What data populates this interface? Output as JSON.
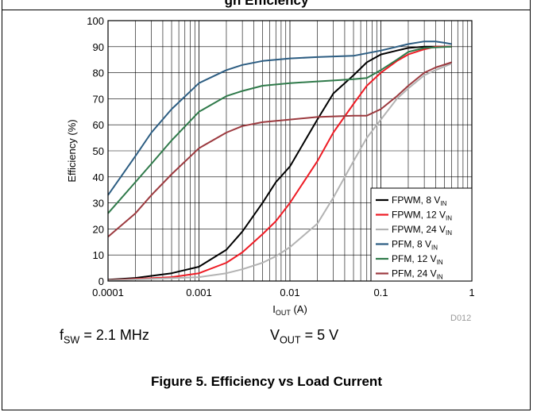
{
  "header": {
    "title_fragment": "gh Efficiency"
  },
  "conditions": {
    "fsw_var": "f",
    "fsw_sub": "SW",
    "fsw_value": " = 2.1 MHz",
    "vout_var": "V",
    "vout_sub": "OUT",
    "vout_value": " = 5 V"
  },
  "figure_caption": "Figure 5. Efficiency vs Load Current",
  "doc_id": "D012",
  "chart_data": {
    "type": "line",
    "title": "",
    "xlabel": "I_OUT (A)",
    "xlabel_main": "I",
    "xlabel_sub": "OUT",
    "xlabel_unit": " (A)",
    "ylabel": "Efficiency (%)",
    "xscale": "log",
    "xlim": [
      0.0001,
      1
    ],
    "ylim": [
      0,
      100
    ],
    "x_ticks": [
      "0.0001",
      "0.001",
      "0.01",
      "0.1",
      "1"
    ],
    "y_ticks": [
      "0",
      "10",
      "20",
      "30",
      "40",
      "50",
      "60",
      "70",
      "80",
      "90",
      "100"
    ],
    "grid": true,
    "legend_position": "bottom-right",
    "series": [
      {
        "name": "FPWM, 8 V_IN",
        "label_main": "FPWM, 8 V",
        "label_sub": "IN",
        "color": "#000000",
        "points": [
          [
            0.0001,
            0.5
          ],
          [
            0.0002,
            1.2
          ],
          [
            0.0005,
            3
          ],
          [
            0.001,
            5.5
          ],
          [
            0.002,
            12
          ],
          [
            0.003,
            19
          ],
          [
            0.005,
            30
          ],
          [
            0.007,
            38
          ],
          [
            0.01,
            44
          ],
          [
            0.02,
            62
          ],
          [
            0.03,
            72
          ],
          [
            0.05,
            79
          ],
          [
            0.07,
            84
          ],
          [
            0.1,
            87
          ],
          [
            0.15,
            88.5
          ],
          [
            0.2,
            89.5
          ],
          [
            0.3,
            90
          ],
          [
            0.4,
            90
          ],
          [
            0.6,
            90
          ]
        ]
      },
      {
        "name": "FPWM, 12 V_IN",
        "label_main": "FPWM, 12 V",
        "label_sub": "IN",
        "color": "#ee1c25",
        "points": [
          [
            0.0001,
            0.3
          ],
          [
            0.0005,
            1.5
          ],
          [
            0.001,
            3
          ],
          [
            0.002,
            7
          ],
          [
            0.003,
            11
          ],
          [
            0.005,
            18
          ],
          [
            0.007,
            23
          ],
          [
            0.01,
            30
          ],
          [
            0.02,
            46
          ],
          [
            0.03,
            57
          ],
          [
            0.05,
            68
          ],
          [
            0.07,
            75
          ],
          [
            0.1,
            80
          ],
          [
            0.15,
            84.5
          ],
          [
            0.2,
            87
          ],
          [
            0.3,
            89
          ],
          [
            0.4,
            90
          ],
          [
            0.6,
            90
          ]
        ]
      },
      {
        "name": "FPWM, 24 V_IN",
        "label_main": "FPWM, 24 V",
        "label_sub": "IN",
        "color": "#b3b3b3",
        "points": [
          [
            0.0001,
            0.2
          ],
          [
            0.001,
            1.5
          ],
          [
            0.002,
            3
          ],
          [
            0.003,
            4.5
          ],
          [
            0.005,
            7
          ],
          [
            0.007,
            9.5
          ],
          [
            0.01,
            13
          ],
          [
            0.02,
            22
          ],
          [
            0.03,
            32
          ],
          [
            0.05,
            46
          ],
          [
            0.07,
            55
          ],
          [
            0.1,
            62
          ],
          [
            0.15,
            70
          ],
          [
            0.2,
            74
          ],
          [
            0.3,
            79
          ],
          [
            0.4,
            81
          ],
          [
            0.6,
            83.5
          ]
        ]
      },
      {
        "name": "PFM, 8 V_IN",
        "label_main": "PFM, 8 V",
        "label_sub": "IN",
        "color": "#2c5d82",
        "points": [
          [
            0.0001,
            33
          ],
          [
            0.0002,
            48
          ],
          [
            0.0003,
            57
          ],
          [
            0.0005,
            66
          ],
          [
            0.001,
            76
          ],
          [
            0.002,
            81
          ],
          [
            0.003,
            83
          ],
          [
            0.005,
            84.5
          ],
          [
            0.01,
            85.5
          ],
          [
            0.02,
            86
          ],
          [
            0.05,
            86.5
          ],
          [
            0.1,
            88.5
          ],
          [
            0.2,
            91
          ],
          [
            0.3,
            92
          ],
          [
            0.4,
            92
          ],
          [
            0.5,
            91.5
          ],
          [
            0.6,
            91
          ]
        ]
      },
      {
        "name": "PFM, 12 V_IN",
        "label_main": "PFM, 12 V",
        "label_sub": "IN",
        "color": "#2f7a4a",
        "points": [
          [
            0.0001,
            26
          ],
          [
            0.0002,
            38
          ],
          [
            0.0003,
            45
          ],
          [
            0.0005,
            54
          ],
          [
            0.001,
            65
          ],
          [
            0.002,
            71
          ],
          [
            0.003,
            73
          ],
          [
            0.005,
            75
          ],
          [
            0.01,
            76
          ],
          [
            0.03,
            77
          ],
          [
            0.05,
            77.5
          ],
          [
            0.07,
            78
          ],
          [
            0.1,
            81
          ],
          [
            0.15,
            85
          ],
          [
            0.2,
            88
          ],
          [
            0.3,
            89.5
          ],
          [
            0.6,
            90
          ]
        ]
      },
      {
        "name": "PFM, 24 V_IN",
        "label_main": "PFM, 24 V",
        "label_sub": "IN",
        "color": "#9c3a3f",
        "points": [
          [
            0.0001,
            17
          ],
          [
            0.0002,
            26
          ],
          [
            0.0003,
            33
          ],
          [
            0.0005,
            41
          ],
          [
            0.001,
            51
          ],
          [
            0.002,
            57
          ],
          [
            0.003,
            59.5
          ],
          [
            0.005,
            61
          ],
          [
            0.01,
            62
          ],
          [
            0.02,
            63
          ],
          [
            0.05,
            63.5
          ],
          [
            0.07,
            63.5
          ],
          [
            0.1,
            66
          ],
          [
            0.15,
            71
          ],
          [
            0.2,
            75
          ],
          [
            0.3,
            80
          ],
          [
            0.4,
            82
          ],
          [
            0.6,
            84
          ]
        ]
      }
    ]
  }
}
